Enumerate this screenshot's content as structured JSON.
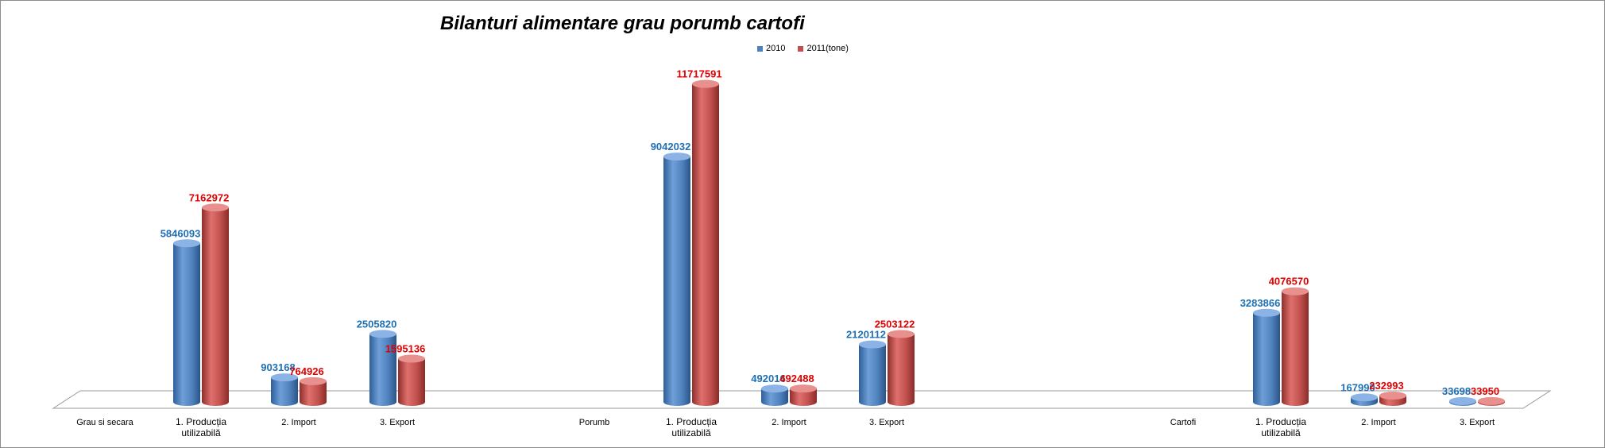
{
  "chart_data": {
    "type": "bar",
    "title": "Bilanturi alimentare grau porumb cartofi",
    "xlabel": "",
    "ylabel": "",
    "groups": [
      {
        "name": "Grau si secara",
        "categories": [
          "1. Producția utilizabilă",
          "2. Import",
          "3. Export"
        ]
      },
      {
        "name": "Porumb",
        "categories": [
          "1. Producția utilizabilă",
          "2. Import",
          "3. Export"
        ]
      },
      {
        "name": "Cartofi",
        "categories": [
          "1. Producția utilizabilă",
          "2. Import",
          "3. Export"
        ]
      }
    ],
    "series": [
      {
        "name": "2010",
        "color": "#4f81bd",
        "label_color": "#1f6fb5",
        "values": [
          5846093,
          903168,
          2505820,
          9042032,
          492016,
          2120112,
          3283866,
          167990,
          33698
        ]
      },
      {
        "name": "2011(tone)",
        "color": "#c0504d",
        "label_color": "#e00000",
        "values": [
          7162972,
          764926,
          1595136,
          11717591,
          492488,
          2503122,
          4076570,
          232993,
          33950
        ]
      }
    ],
    "ylim": [
      0,
      12000000
    ],
    "legend_position": "top",
    "grid": false
  }
}
